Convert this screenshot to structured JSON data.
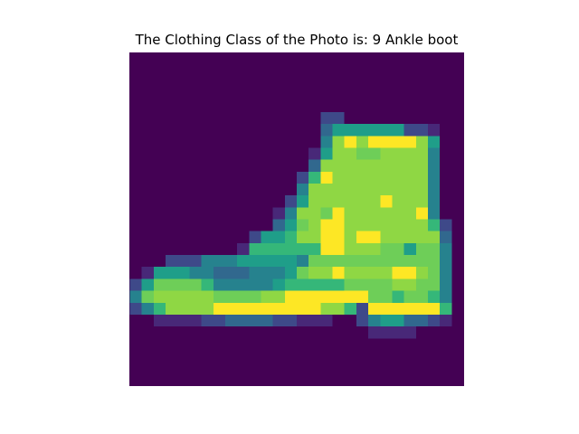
{
  "figure": {
    "title": "The Clothing Class of the Photo is: 9 Ankle boot"
  },
  "image": {
    "subject": "Ankle boot",
    "colormap": "viridis",
    "background_color": "#440154",
    "colors": [
      "#440154",
      "#482878",
      "#3e4989",
      "#31688e",
      "#26828e",
      "#1f9e89",
      "#35b779",
      "#6ece58",
      "#8fd744",
      "#b5de2b",
      "#fde725"
    ]
  }
}
